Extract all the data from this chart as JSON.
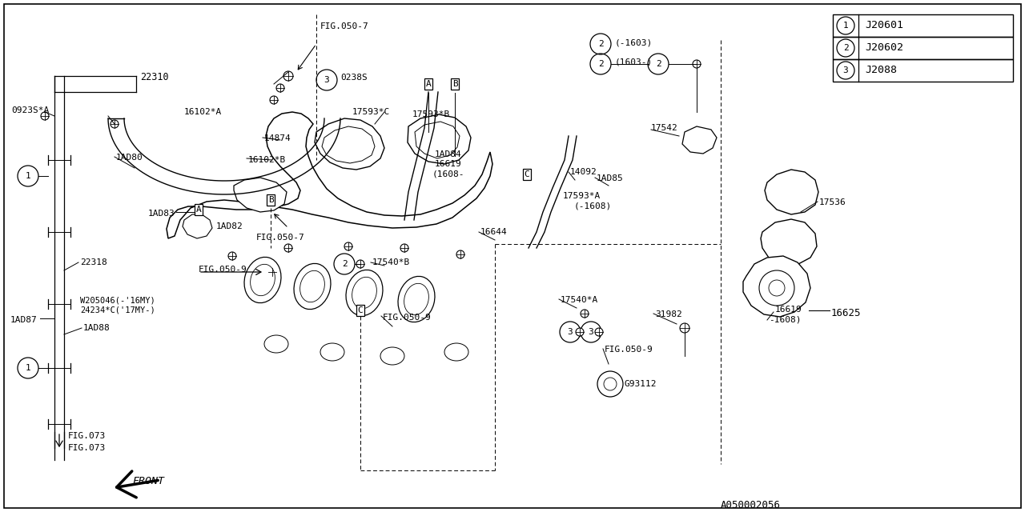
{
  "bg_color": "#ffffff",
  "line_color": "#000000",
  "diagram_id": "A050002056",
  "legend": [
    {
      "num": "1",
      "code": "J20601"
    },
    {
      "num": "2",
      "code": "J20602"
    },
    {
      "num": "3",
      "code": "J2088"
    }
  ],
  "figsize": [
    12.8,
    6.4
  ],
  "dpi": 100
}
